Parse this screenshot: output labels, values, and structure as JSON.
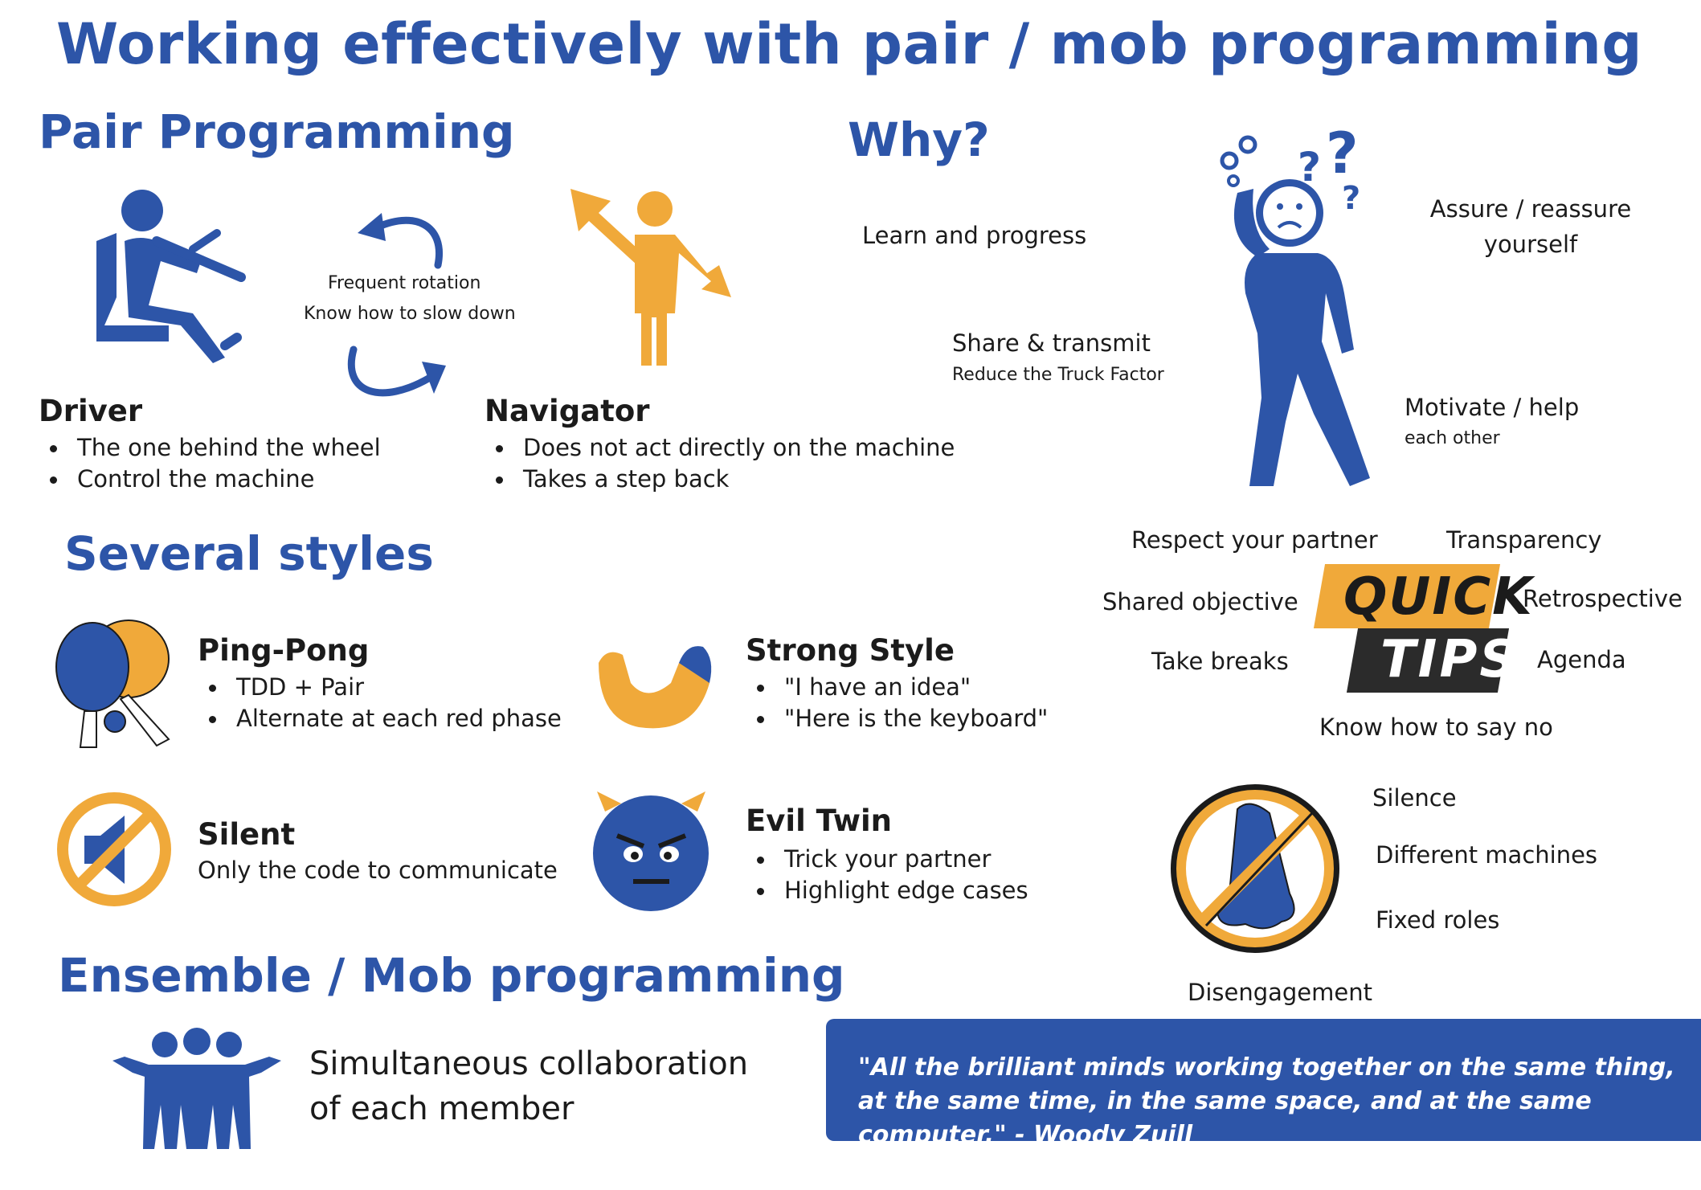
{
  "title": "Working effectively with pair / mob programming",
  "pair": {
    "heading": "Pair Programming",
    "rotation": [
      "Frequent rotation",
      "Know how to slow down"
    ],
    "driver": {
      "title": "Driver",
      "bullets": [
        "The one behind the wheel",
        "Control the machine"
      ]
    },
    "navigator": {
      "title": "Navigator",
      "bullets": [
        "Does not act directly on the machine",
        "Takes a step back"
      ]
    }
  },
  "why": {
    "heading": "Why?",
    "learn": "Learn and progress",
    "share": "Share & transmit",
    "share_sub": "Reduce the Truck Factor",
    "assure": "Assure / reassure yourself",
    "motivate": "Motivate / help",
    "motivate_sub": "each other"
  },
  "styles": {
    "heading": "Several styles",
    "pingpong": {
      "title": "Ping-Pong",
      "bullets": [
        "TDD + Pair",
        "Alternate at each red phase"
      ]
    },
    "strong": {
      "title": "Strong Style",
      "bullets": [
        "\"I have an idea\"",
        "\"Here is the keyboard\""
      ]
    },
    "silent": {
      "title": "Silent",
      "desc": "Only the code to communicate"
    },
    "evil": {
      "title": "Evil Twin",
      "bullets": [
        "Trick your partner",
        "Highlight edge cases"
      ]
    }
  },
  "tips": {
    "badge_top": "QUICK",
    "badge_bottom": "TIPS",
    "items": {
      "respect": "Respect your partner",
      "transparency": "Transparency",
      "shared": "Shared objective",
      "retro": "Retrospective",
      "breaks": "Take breaks",
      "agenda": "Agenda",
      "sayno": "Know how to say no"
    }
  },
  "smells": {
    "silence": "Silence",
    "machines": "Different machines",
    "roles": "Fixed roles",
    "disengagement": "Disengagement"
  },
  "mob": {
    "heading": "Ensemble / Mob programming",
    "desc": "Simultaneous collaboration of each member"
  },
  "quote": "\"All the brilliant minds working together on the same thing, at the same time, in the same space, and at the same computer.\" - Woody Zuill",
  "colors": {
    "blue": "#2d55a8",
    "orange": "#f0a93a",
    "dark": "#1b1b1b"
  }
}
